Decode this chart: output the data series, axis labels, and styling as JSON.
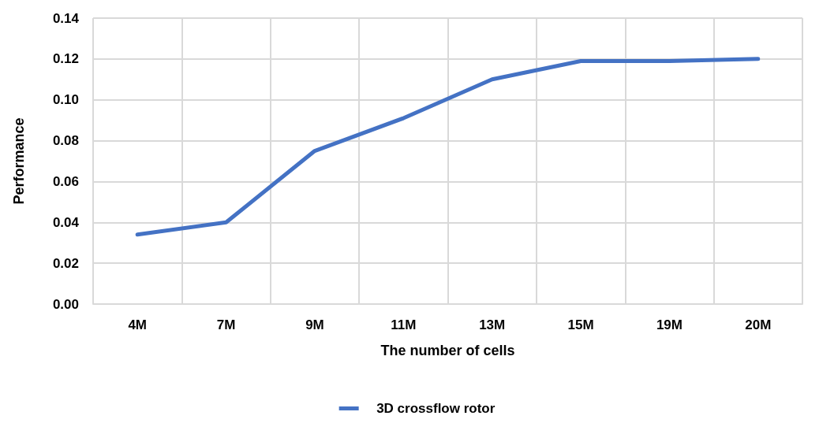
{
  "chart_data": {
    "type": "line",
    "xlabel": "The number of cells",
    "ylabel": "Performance",
    "categories": [
      "4M",
      "7M",
      "9M",
      "11M",
      "13M",
      "15M",
      "19M",
      "20M"
    ],
    "series": [
      {
        "name": "3D crossflow rotor",
        "color": "#4472c4",
        "values": [
          0.034,
          0.04,
          0.075,
          0.091,
          0.11,
          0.119,
          0.119,
          0.12
        ]
      }
    ],
    "ylim": [
      0,
      0.14
    ],
    "yticks": [
      {
        "value": 0,
        "label": "0.00"
      },
      {
        "value": 0.02,
        "label": "0.02"
      },
      {
        "value": 0.04,
        "label": "0.04"
      },
      {
        "value": 0.06,
        "label": "0.06"
      },
      {
        "value": 0.08,
        "label": "0.08"
      },
      {
        "value": 0.1,
        "label": "0.10"
      },
      {
        "value": 0.12,
        "label": "0.12"
      },
      {
        "value": 0.14,
        "label": "0.14"
      }
    ],
    "grid": true,
    "legend": "bottom",
    "marker": "none",
    "line_style": "solid"
  }
}
